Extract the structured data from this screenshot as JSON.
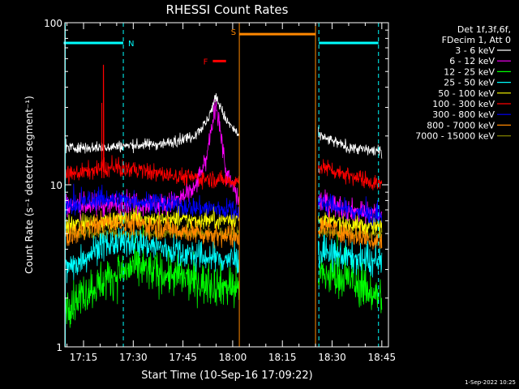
{
  "chart_data": {
    "type": "line",
    "title": "RHESSI Count Rates",
    "xlabel": "Start Time (10-Sep-16 17:09:22)",
    "ylabel": "Count Rate (s⁻¹ detector segment⁻¹)",
    "yscale": "log",
    "ylim": [
      1,
      100
    ],
    "xlim": [
      "17:09:22",
      "18:47:00"
    ],
    "x_ticks": [
      "17:15",
      "17:30",
      "17:45",
      "18:00",
      "18:15",
      "18:30",
      "18:45"
    ],
    "y_ticks": [
      "1",
      "10",
      "100"
    ],
    "legend_header": [
      "Det 1f,3f,6f,",
      "FDecim 1, Att 0"
    ],
    "legend_position": "right",
    "gap": [
      "18:02",
      "18:25"
    ],
    "series": [
      {
        "name": "3 - 6 keV",
        "color": "#ffffff",
        "level": 17.5,
        "x": [
          "17:10",
          "17:20",
          "17:30",
          "17:40",
          "17:48",
          "17:52",
          "17:55",
          "17:58",
          "18:02",
          "18:26",
          "18:35",
          "18:45"
        ],
        "values": [
          17,
          17,
          17.5,
          18,
          20,
          24,
          35,
          25,
          20,
          20,
          17,
          16
        ]
      },
      {
        "name": "6 - 12 keV",
        "color": "#ff00ff",
        "level": 7.5,
        "x": [
          "17:10",
          "17:20",
          "17:30",
          "17:40",
          "17:48",
          "17:52",
          "17:55",
          "17:58",
          "18:02",
          "18:26",
          "18:35",
          "18:45"
        ],
        "values": [
          7.5,
          7.5,
          7.8,
          7.5,
          9,
          14,
          33,
          12,
          8,
          8,
          7,
          6.5
        ]
      },
      {
        "name": "12 - 25 keV",
        "color": "#00ff00",
        "level": 2.4,
        "x": [
          "17:10",
          "17:20",
          "17:30",
          "17:40",
          "17:50",
          "18:02",
          "18:26",
          "18:35",
          "18:45"
        ],
        "values": [
          1.8,
          2.5,
          3.1,
          2.8,
          2.5,
          2.3,
          2.8,
          2.6,
          2.0
        ]
      },
      {
        "name": "25 - 50 keV",
        "color": "#00ffff",
        "level": 3.6,
        "x": [
          "17:10",
          "17:20",
          "17:30",
          "17:40",
          "17:50",
          "18:02",
          "18:26",
          "18:35",
          "18:45"
        ],
        "values": [
          3.0,
          4.2,
          4.5,
          4.0,
          3.6,
          3.4,
          3.8,
          3.6,
          3.2
        ]
      },
      {
        "name": "50 - 100 keV",
        "color": "#ffff00",
        "level": 5.8,
        "x": [
          "17:10",
          "17:30",
          "17:50",
          "18:02",
          "18:26",
          "18:45"
        ],
        "values": [
          5.6,
          6.2,
          6.0,
          6.2,
          6.0,
          5.4
        ]
      },
      {
        "name": "100 - 300 keV",
        "color": "#ff0000",
        "level": 11.5,
        "x": [
          "17:10",
          "17:20",
          "17:30",
          "17:40",
          "17:50",
          "18:02",
          "18:26",
          "18:35",
          "18:45"
        ],
        "values": [
          11.5,
          12.5,
          12.5,
          11.5,
          11,
          10.5,
          13,
          11.5,
          10
        ]
      },
      {
        "name": "300 - 800 keV",
        "color": "#0000ff",
        "level": 7.5,
        "x": [
          "17:10",
          "17:20",
          "17:30",
          "17:40",
          "17:50",
          "18:02",
          "18:26",
          "18:35",
          "18:45"
        ],
        "values": [
          7.3,
          8.2,
          8.0,
          7.6,
          7.2,
          7.0,
          7.8,
          7.0,
          6.3
        ]
      },
      {
        "name": "800 - 7000 keV",
        "color": "#ff8800",
        "level": 5.3,
        "x": [
          "17:10",
          "17:20",
          "17:30",
          "17:40",
          "17:50",
          "18:02",
          "18:26",
          "18:35",
          "18:45"
        ],
        "values": [
          4.8,
          5.8,
          5.8,
          5.4,
          5.0,
          4.8,
          5.6,
          5.0,
          4.4
        ]
      },
      {
        "name": "7000 - 15000 keV",
        "color": "#808000",
        "level": 5.0,
        "x": [
          "17:10",
          "18:02"
        ],
        "values": [
          5.0,
          5.0
        ]
      }
    ],
    "spike": {
      "time": "17:21",
      "series": "100 - 300 keV",
      "value": 55
    },
    "annotations": [
      {
        "label": "N",
        "color": "#00ffff",
        "from": "17:09",
        "to": "17:27",
        "value": 75
      },
      {
        "label": "F",
        "color": "#ff0000",
        "from": "17:54",
        "to": "17:58",
        "value": 58
      },
      {
        "label": "S",
        "color": "#ff8800",
        "from": "18:02",
        "to": "18:25",
        "value": 85
      },
      {
        "label": "",
        "color": "#00ffff",
        "from": "18:26",
        "to": "18:44",
        "value": 75
      }
    ],
    "vlines": [
      {
        "time": "17:09:30",
        "color": "#00ffff",
        "dashed": false
      },
      {
        "time": "17:27",
        "color": "#00ffff",
        "dashed": true
      },
      {
        "time": "18:02",
        "color": "#ff8800",
        "dashed": false
      },
      {
        "time": "18:25",
        "color": "#ff8800",
        "dashed": false
      },
      {
        "time": "18:26",
        "color": "#00ffff",
        "dashed": true
      },
      {
        "time": "18:44",
        "color": "#00ffff",
        "dashed": true
      }
    ],
    "grid": false,
    "footer_stamp": "1-Sep-2022 10:25"
  }
}
